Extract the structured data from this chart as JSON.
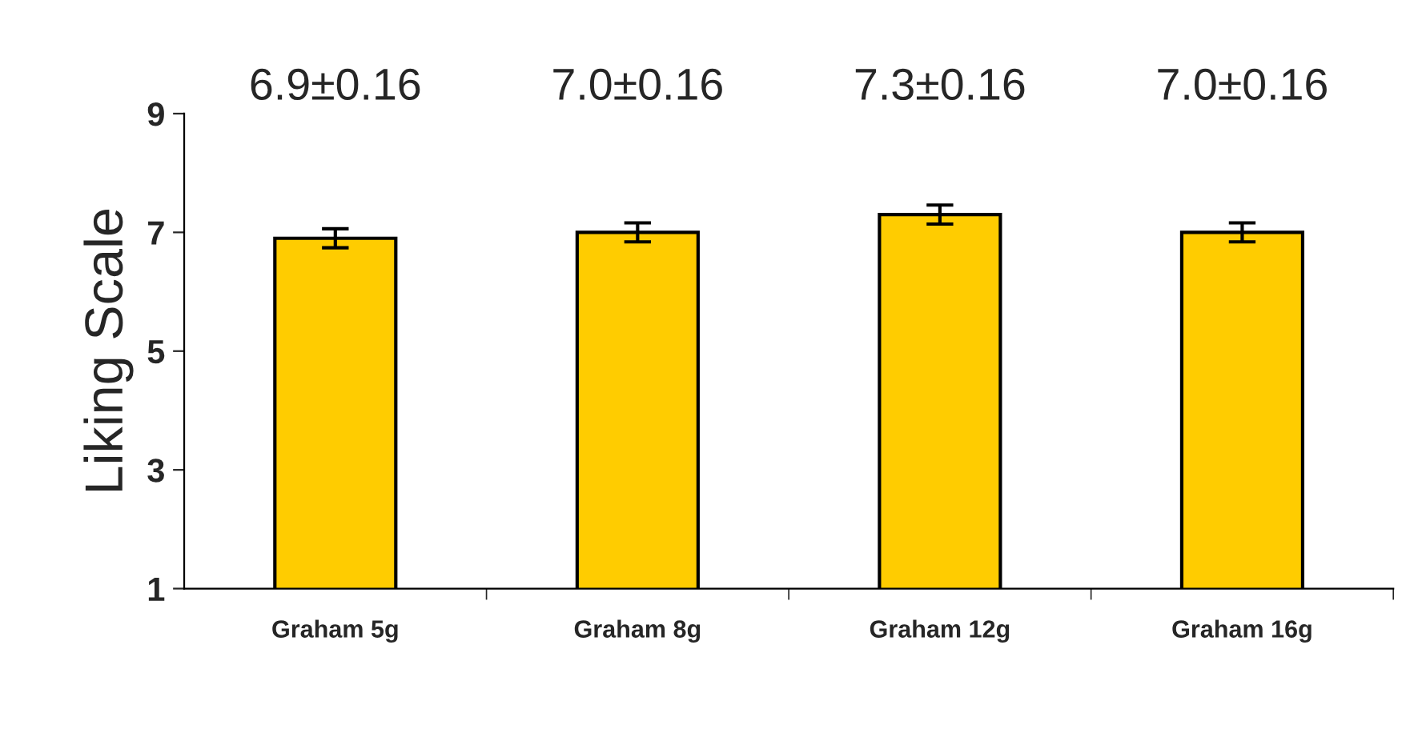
{
  "chart_data": {
    "type": "bar",
    "ylabel": "Liking Scale",
    "categories": [
      "Graham 5g",
      "Graham 8g",
      "Graham 12g",
      "Graham 16g"
    ],
    "values": [
      6.9,
      7.0,
      7.3,
      7.0
    ],
    "errors": [
      0.16,
      0.16,
      0.16,
      0.16
    ],
    "value_labels": [
      "6.9±0.16",
      "7.0±0.16",
      "7.3±0.16",
      "7.0±0.16"
    ],
    "color": "#ffcc00",
    "ylim": [
      1,
      9
    ],
    "yticks": [
      1,
      3,
      5,
      7,
      9
    ],
    "grid": false,
    "legend": false
  }
}
